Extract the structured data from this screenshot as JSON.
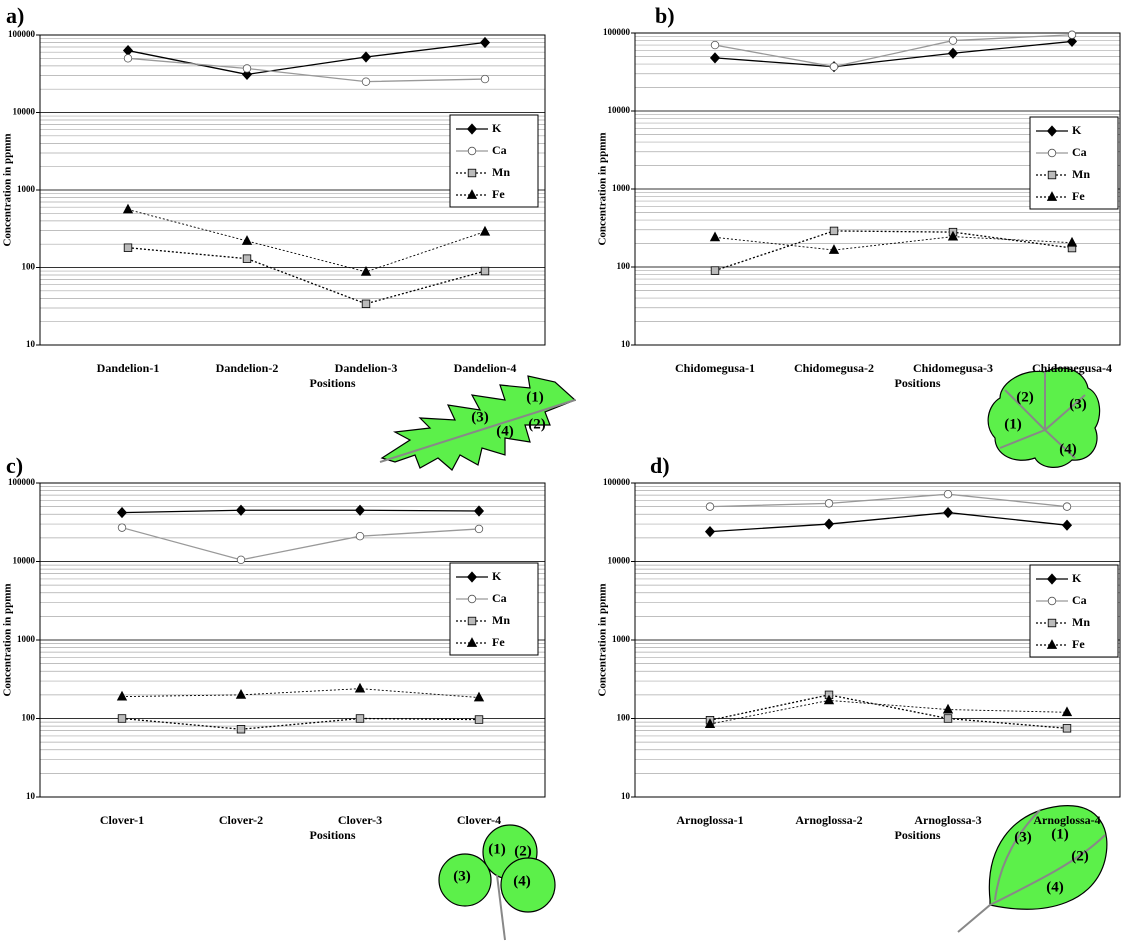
{
  "chart_data": [
    {
      "type": "line",
      "panel_label": "a)",
      "ylabel": "Concentration in ppmm",
      "xlabel": "Positions",
      "categories": [
        "Dandelion-1",
        "Dandelion-2",
        "Dandelion-3",
        "Dandelion-4"
      ],
      "log_scale": true,
      "ylim": [
        10,
        100000
      ],
      "yticks": [
        10,
        100,
        1000,
        10000,
        100000
      ],
      "grid": true,
      "minor_grid": true,
      "legend": "right",
      "series": [
        {
          "name": "K",
          "color": "#000000",
          "marker": "diamond",
          "marker_fill": "#000000",
          "dash": "solid",
          "values": [
            63000,
            31000,
            52000,
            80000
          ]
        },
        {
          "name": "Ca",
          "color": "#999999",
          "marker": "circle",
          "marker_fill": "#ffffff",
          "dash": "solid",
          "values": [
            50000,
            37000,
            25000,
            27000
          ]
        },
        {
          "name": "Mn",
          "color": "#000000",
          "marker": "square",
          "marker_fill": "#bbbbbb",
          "dash": "dotted",
          "values": [
            180,
            130,
            34,
            90
          ]
        },
        {
          "name": "Fe",
          "color": "#000000",
          "marker": "triangle",
          "marker_fill": "#000000",
          "dash": "dotted",
          "values": [
            560,
            220,
            88,
            290
          ]
        }
      ],
      "leaf_labels": [
        "(1)",
        "(2)",
        "(3)",
        "(4)"
      ]
    },
    {
      "type": "line",
      "panel_label": "b)",
      "ylabel": "Concentration in ppmm",
      "xlabel": "Positions",
      "categories": [
        "Chidomegusa-1",
        "Chidomegusa-2",
        "Chidomegusa-3",
        "Chidomegusa-4"
      ],
      "log_scale": true,
      "ylim": [
        10,
        100000
      ],
      "yticks": [
        10,
        100,
        1000,
        10000,
        100000
      ],
      "grid": true,
      "minor_grid": true,
      "legend": "right",
      "series": [
        {
          "name": "K",
          "color": "#000000",
          "marker": "diamond",
          "marker_fill": "#000000",
          "dash": "solid",
          "values": [
            48000,
            37000,
            55000,
            78000
          ]
        },
        {
          "name": "Ca",
          "color": "#999999",
          "marker": "circle",
          "marker_fill": "#ffffff",
          "dash": "solid",
          "values": [
            70000,
            37000,
            80000,
            95000
          ]
        },
        {
          "name": "Mn",
          "color": "#000000",
          "marker": "square",
          "marker_fill": "#bbbbbb",
          "dash": "dotted",
          "values": [
            90,
            290,
            280,
            175
          ]
        },
        {
          "name": "Fe",
          "color": "#000000",
          "marker": "triangle",
          "marker_fill": "#000000",
          "dash": "dotted",
          "values": [
            240,
            165,
            245,
            205
          ]
        }
      ],
      "leaf_labels": [
        "(1)",
        "(2)",
        "(3)",
        "(4)"
      ]
    },
    {
      "type": "line",
      "panel_label": "c)",
      "ylabel": "Concentration in ppmm",
      "xlabel": "Positions",
      "categories": [
        "Clover-1",
        "Clover-2",
        "Clover-3",
        "Clover-4"
      ],
      "log_scale": true,
      "ylim": [
        10,
        100000
      ],
      "yticks": [
        10,
        100,
        1000,
        10000,
        100000
      ],
      "grid": true,
      "minor_grid": true,
      "legend": "right",
      "series": [
        {
          "name": "K",
          "color": "#000000",
          "marker": "diamond",
          "marker_fill": "#000000",
          "dash": "solid",
          "values": [
            42000,
            45000,
            45000,
            44000
          ]
        },
        {
          "name": "Ca",
          "color": "#999999",
          "marker": "circle",
          "marker_fill": "#ffffff",
          "dash": "solid",
          "values": [
            27000,
            10500,
            21000,
            26000
          ]
        },
        {
          "name": "Mn",
          "color": "#000000",
          "marker": "square",
          "marker_fill": "#bbbbbb",
          "dash": "dotted",
          "values": [
            100,
            73,
            100,
            97
          ]
        },
        {
          "name": "Fe",
          "color": "#000000",
          "marker": "triangle",
          "marker_fill": "#000000",
          "dash": "dotted",
          "values": [
            190,
            200,
            240,
            185
          ]
        }
      ],
      "leaf_labels": [
        "(1)",
        "(2)",
        "(3)",
        "(4)"
      ]
    },
    {
      "type": "line",
      "panel_label": "d)",
      "ylabel": "Concentration in ppmm",
      "xlabel": "Positions",
      "categories": [
        "Arnoglossa-1",
        "Arnoglossa-2",
        "Arnoglossa-3",
        "Arnoglossa-4"
      ],
      "log_scale": true,
      "ylim": [
        10,
        100000
      ],
      "yticks": [
        10,
        100,
        1000,
        10000,
        100000
      ],
      "grid": true,
      "minor_grid": true,
      "legend": "right",
      "series": [
        {
          "name": "K",
          "color": "#000000",
          "marker": "diamond",
          "marker_fill": "#000000",
          "dash": "solid",
          "values": [
            24000,
            30000,
            42000,
            29000
          ]
        },
        {
          "name": "Ca",
          "color": "#999999",
          "marker": "circle",
          "marker_fill": "#ffffff",
          "dash": "solid",
          "values": [
            50000,
            55000,
            72000,
            50000
          ]
        },
        {
          "name": "Mn",
          "color": "#000000",
          "marker": "square",
          "marker_fill": "#bbbbbb",
          "dash": "dotted",
          "values": [
            95,
            200,
            100,
            75
          ]
        },
        {
          "name": "Fe",
          "color": "#000000",
          "marker": "triangle",
          "marker_fill": "#000000",
          "dash": "dotted",
          "values": [
            85,
            170,
            130,
            120
          ]
        }
      ],
      "leaf_labels": [
        "(1)",
        "(2)",
        "(3)",
        "(4)"
      ]
    }
  ]
}
